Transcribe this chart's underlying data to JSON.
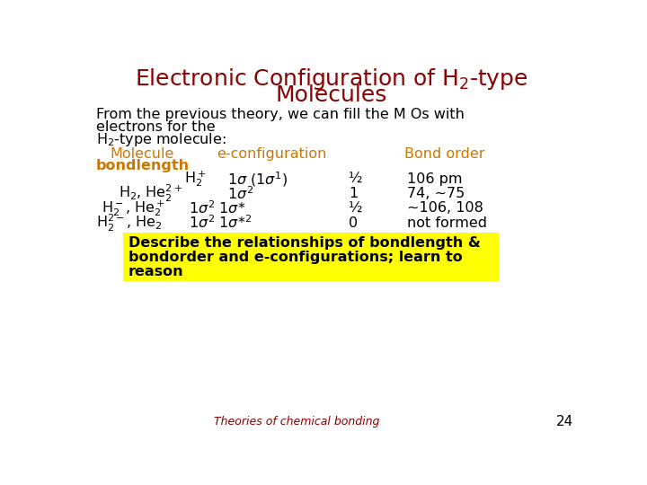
{
  "title_color": "#8B0000",
  "bg_color": "#ffffff",
  "header_color": "#CC7700",
  "footer_text": "Theories of chemical bonding",
  "footer_color": "#8B0000",
  "page_number": "24",
  "highlight_color": "#FFFF00",
  "highlight_text_lines": [
    "Describe the relationships of bondlength &",
    "bondorder and e-configurations; learn to",
    "reason"
  ],
  "title_fontsize": 18,
  "body_fontsize": 11.5,
  "header_fontsize": 11.5
}
